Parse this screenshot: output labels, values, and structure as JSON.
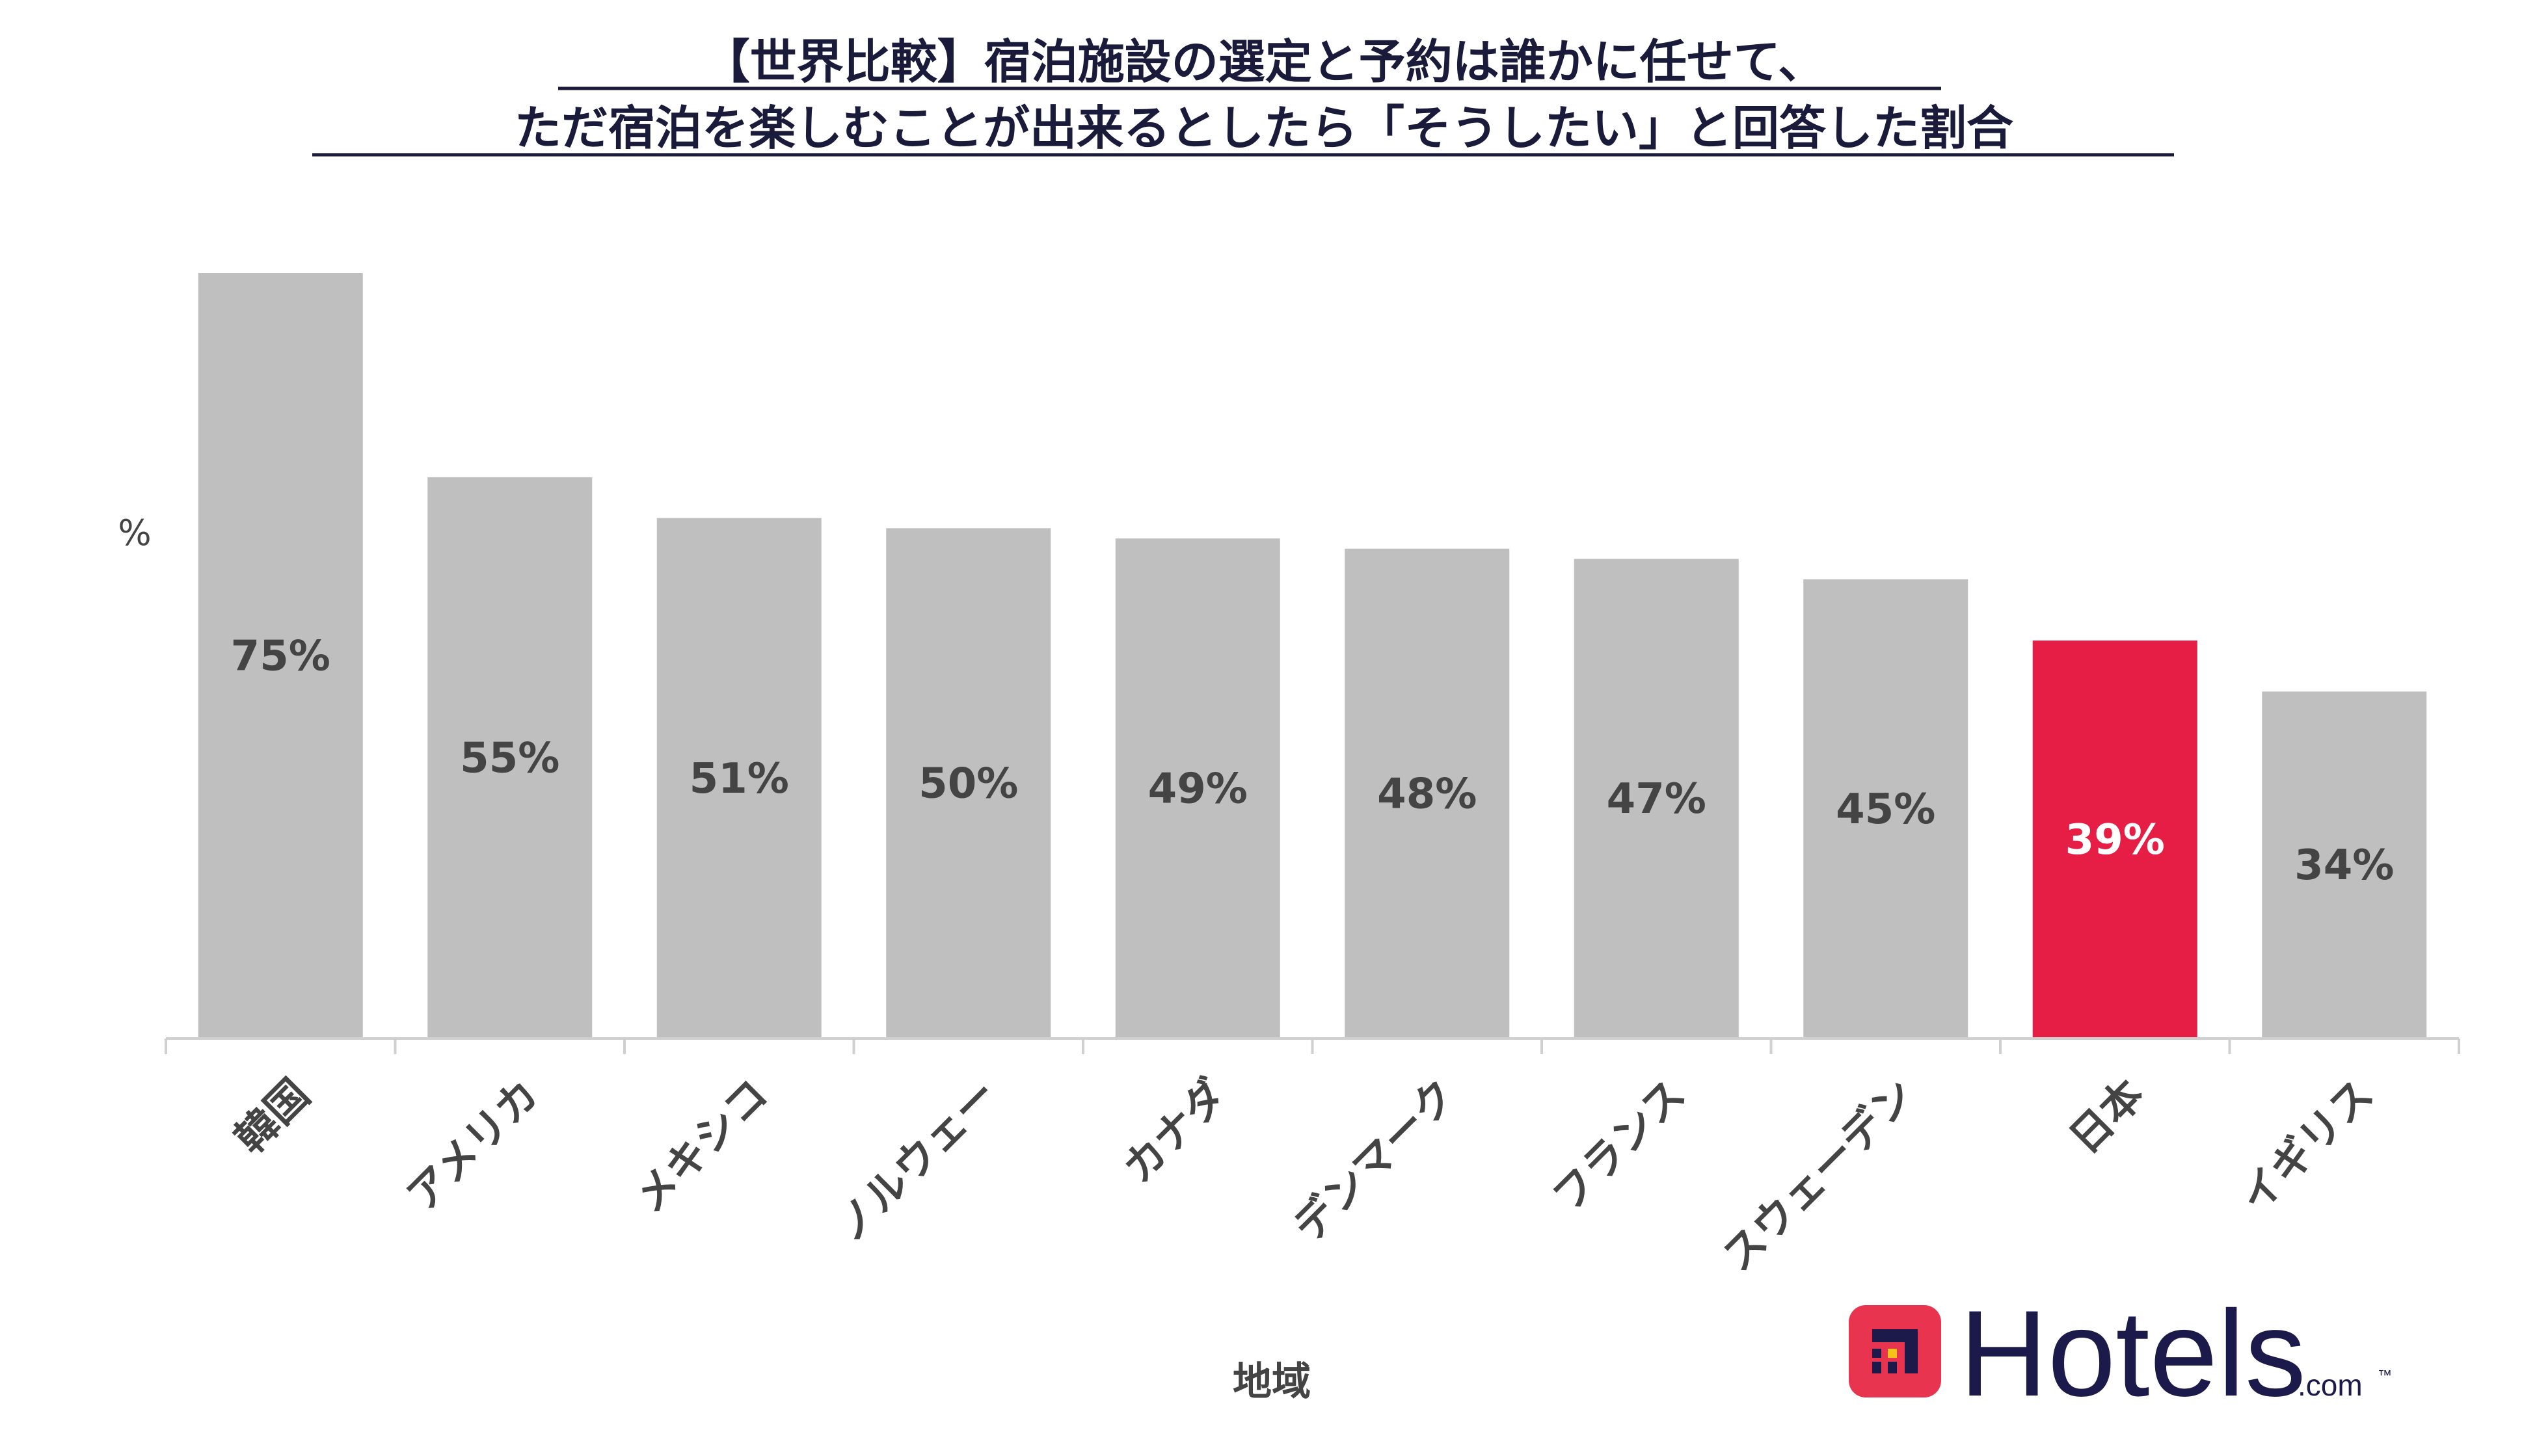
{
  "chart_data": {
    "type": "bar",
    "title_line1": "【世界比較】宿泊施設の選定と予約は誰かに任せて、",
    "title_line2": "ただ宿泊を楽しむことが出来るとしたら「そうしたい」と回答した割合",
    "ylabel": "%",
    "xlabel": "地域",
    "categories": [
      "韓国",
      "アメリカ",
      "メキシコ",
      "ノルウェー",
      "カナダ",
      "デンマーク",
      "フランス",
      "スウェーデン",
      "日本",
      "イギリス"
    ],
    "values": [
      75,
      55,
      51,
      50,
      49,
      48,
      47,
      45,
      39,
      34
    ],
    "data_labels": [
      "75%",
      "55%",
      "51%",
      "50%",
      "49%",
      "48%",
      "47%",
      "45%",
      "39%",
      "34%"
    ],
    "highlight_index": 8,
    "ylim": [
      0,
      75
    ],
    "grid": false,
    "legend": "none",
    "colors": {
      "bar": "#bfbfbf",
      "highlight": "#e61e45",
      "label": "#444444",
      "highlight_label": "#ffffff",
      "axis": "#d0d0d0"
    }
  },
  "logo": {
    "brand": "Hotels",
    "suffix": ".com",
    "tm": "™",
    "icon": "hotels-icon",
    "icon_color": "#e8344e",
    "text_color": "#1b1a4b"
  }
}
